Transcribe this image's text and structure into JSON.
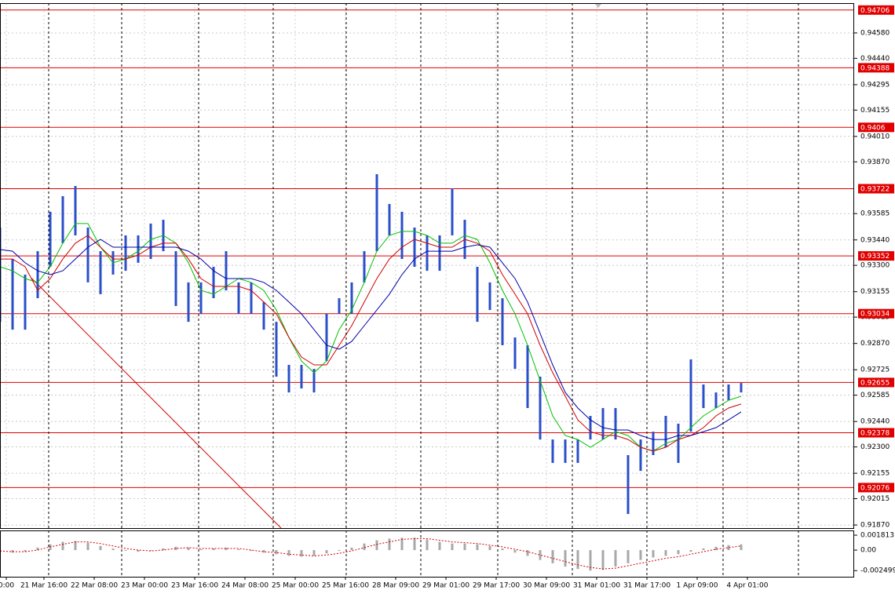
{
  "chart_data": [
    {
      "type": "range",
      "color": "#2a4fc9",
      "x": [
        -4,
        0,
        4,
        8,
        12,
        16,
        20,
        24,
        28,
        32,
        36,
        40,
        44,
        48,
        52,
        56,
        60,
        64,
        68,
        72,
        76,
        80,
        84,
        88,
        92,
        96,
        100,
        104,
        108,
        112,
        116,
        120,
        124,
        128,
        132,
        136,
        140,
        144,
        148,
        152,
        156,
        160,
        164,
        168,
        172,
        176,
        180,
        184,
        188,
        192,
        196,
        200,
        204,
        208,
        212,
        216,
        220,
        224,
        228,
        232
      ],
      "high": [
        0.93508,
        0.93335,
        0.93249,
        0.93378,
        0.93595,
        0.93681,
        0.93737,
        0.93508,
        0.93378,
        0.93378,
        0.93465,
        0.93465,
        0.9353,
        0.93551,
        0.93378,
        0.93206,
        0.93206,
        0.93292,
        0.93378,
        0.93206,
        0.93206,
        0.93098,
        0.92989,
        0.92752,
        0.92752,
        0.9273,
        0.93033,
        0.93119,
        0.93206,
        0.93378,
        0.93802,
        0.93638,
        0.93595,
        0.93508,
        0.93465,
        0.93465,
        0.93724,
        0.93551,
        0.93292,
        0.93206,
        0.93119,
        0.92903,
        0.9286,
        0.92687,
        0.92341,
        0.92341,
        0.92341,
        0.92471,
        0.92514,
        0.92514,
        0.92255,
        0.92341,
        0.92384,
        0.92471,
        0.92428,
        0.92782,
        0.92644,
        0.926,
        0.92644,
        0.92652
      ],
      "low": [
        0.92989,
        0.92946,
        0.92946,
        0.93119,
        0.93292,
        0.93422,
        0.93465,
        0.93206,
        0.93141,
        0.93249,
        0.9327,
        0.93314,
        0.93335,
        0.93378,
        0.93076,
        0.92989,
        0.93033,
        0.93119,
        0.93162,
        0.93033,
        0.93033,
        0.92946,
        0.92687,
        0.926,
        0.92622,
        0.926,
        0.92773,
        0.93033,
        0.93033,
        0.93206,
        0.93378,
        0.93465,
        0.93335,
        0.93292,
        0.9327,
        0.9327,
        0.93465,
        0.93335,
        0.92989,
        0.93054,
        0.9286,
        0.9273,
        0.92514,
        0.92341,
        0.92212,
        0.92212,
        0.92212,
        0.92341,
        0.92341,
        0.92341,
        0.91931,
        0.92168,
        0.92255,
        0.92298,
        0.92212,
        0.92384,
        0.92514,
        0.92514,
        0.92557,
        0.926
      ],
      "series": [
        {
          "color": "#00c000",
          "values": [
            0.93292,
            0.9327,
            0.93227,
            0.93206,
            0.93292,
            0.93422,
            0.9353,
            0.9353,
            0.934,
            0.93314,
            0.93335,
            0.93378,
            0.93443,
            0.93465,
            0.93422,
            0.93314,
            0.93162,
            0.93141,
            0.93184,
            0.93227,
            0.93206,
            0.93162,
            0.93054,
            0.92903,
            0.92773,
            0.92709,
            0.92773,
            0.92946,
            0.93054,
            0.93206,
            0.93378,
            0.93465,
            0.93487,
            0.93487,
            0.93465,
            0.93422,
            0.93422,
            0.93465,
            0.93443,
            0.93314,
            0.93162,
            0.93033,
            0.9286,
            0.92665,
            0.92471,
            0.92363,
            0.92341,
            0.92298,
            0.92341,
            0.92384,
            0.92363,
            0.92298,
            0.92277,
            0.9232,
            0.92341,
            0.92406,
            0.92471,
            0.92514,
            0.92557,
            0.92579
          ]
        },
        {
          "color": "#d00000",
          "values": [
            0.93335,
            0.93335,
            0.93292,
            0.93162,
            0.93227,
            0.93335,
            0.93422,
            0.93465,
            0.934,
            0.93335,
            0.93335,
            0.93357,
            0.934,
            0.93422,
            0.93422,
            0.93335,
            0.93227,
            0.93184,
            0.93184,
            0.93184,
            0.93162,
            0.93098,
            0.93033,
            0.92903,
            0.92795,
            0.92752,
            0.92752,
            0.9286,
            0.92968,
            0.93098,
            0.93227,
            0.93335,
            0.934,
            0.93443,
            0.93422,
            0.934,
            0.934,
            0.93443,
            0.93422,
            0.93378,
            0.93249,
            0.93141,
            0.93033,
            0.9286,
            0.92709,
            0.92579,
            0.92449,
            0.92384,
            0.92363,
            0.92363,
            0.92341,
            0.92298,
            0.92277,
            0.92298,
            0.92341,
            0.92363,
            0.92406,
            0.92471,
            0.92514,
            0.92536
          ]
        },
        {
          "color": "#0000a8",
          "values": [
            0.93387,
            0.93378,
            0.93314,
            0.9327,
            0.93249,
            0.9327,
            0.93335,
            0.934,
            0.93443,
            0.934,
            0.934,
            0.934,
            0.934,
            0.934,
            0.934,
            0.93378,
            0.93335,
            0.9327,
            0.93227,
            0.93227,
            0.93227,
            0.93206,
            0.93162,
            0.93098,
            0.93033,
            0.92946,
            0.9286,
            0.92838,
            0.92881,
            0.92968,
            0.93054,
            0.93141,
            0.93249,
            0.93335,
            0.93378,
            0.93378,
            0.93378,
            0.934,
            0.93413,
            0.934,
            0.93314,
            0.93227,
            0.93098,
            0.92925,
            0.92752,
            0.926,
            0.92514,
            0.92449,
            0.92406,
            0.92393,
            0.92393,
            0.92363,
            0.92341,
            0.92341,
            0.92363,
            0.92363,
            0.92384,
            0.92406,
            0.92449,
            0.92493
          ]
        }
      ],
      "trendline": {
        "color": "#d00000",
        "x": [
          6,
          85.5
        ],
        "y": [
          0.9323,
          0.91853
        ]
      },
      "levels": [
        0.94706,
        0.94388,
        0.9406,
        0.93722,
        0.93352,
        0.93034,
        0.92655,
        0.92378,
        0.92076
      ],
      "level_color": "#e00000",
      "xlim": [
        -4,
        268
      ],
      "xticks": [
        {
          "value": -2,
          "label": "0:00"
        },
        {
          "value": 10,
          "label": "21 Mar 16:00"
        },
        {
          "value": 26,
          "label": "22 Mar 08:00"
        },
        {
          "value": 42,
          "label": "23 Mar 00:00"
        },
        {
          "value": 58,
          "label": "23 Mar 16:00"
        },
        {
          "value": 74,
          "label": "24 Mar 08:00"
        },
        {
          "value": 90,
          "label": "25 Mar 00:00"
        },
        {
          "value": 106,
          "label": "25 Mar 16:00"
        },
        {
          "value": 122,
          "label": "28 Mar 09:00"
        },
        {
          "value": 138,
          "label": "29 Mar 01:00"
        },
        {
          "value": 154,
          "label": "29 Mar 17:00"
        },
        {
          "value": 170,
          "label": "30 Mar 09:00"
        },
        {
          "value": 186,
          "label": "31 Mar 01:00"
        },
        {
          "value": 202,
          "label": "31 Mar 17:00"
        },
        {
          "value": 218,
          "label": "1 Apr 09:00"
        },
        {
          "value": 234,
          "label": "4 Apr 01:00"
        }
      ],
      "ylim": [
        0.91853,
        0.94744
      ],
      "yticks": [
        {
          "value": 0.9458,
          "label": "0.94580"
        },
        {
          "value": 0.9444,
          "label": "0.94440"
        },
        0.94295,
        0.94155,
        {
          "value": 0.9401,
          "label": "0.94010"
        },
        {
          "value": 0.9387,
          "label": "0.93870"
        },
        0.93585,
        {
          "value": 0.9344,
          "label": "0.93440"
        },
        {
          "value": 0.933,
          "label": "0.93300"
        },
        0.93155,
        0.93015,
        {
          "value": 0.9287,
          "label": "0.92870"
        },
        0.92725,
        0.92585,
        {
          "value": 0.9244,
          "label": "0.92440"
        },
        {
          "value": 0.923,
          "label": "0.92300"
        },
        0.92155,
        0.92015,
        {
          "value": 0.9187,
          "label": "0.91870"
        }
      ],
      "grid": true
    },
    {
      "type": "bar",
      "color": "#a8a8a8",
      "x": [
        -4,
        0,
        4,
        8,
        12,
        16,
        20,
        24,
        28,
        32,
        36,
        40,
        44,
        48,
        52,
        56,
        60,
        64,
        68,
        72,
        76,
        80,
        84,
        88,
        92,
        96,
        100,
        104,
        108,
        112,
        116,
        120,
        124,
        128,
        132,
        136,
        140,
        144,
        148,
        152,
        156,
        160,
        164,
        168,
        172,
        176,
        180,
        184,
        188,
        192,
        196,
        200,
        204,
        208,
        212,
        216,
        220,
        224,
        228,
        232
      ],
      "values": [
        -0.0002,
        -0.0003,
        -0.0002,
        0.0003,
        0.0007,
        0.001,
        0.0011,
        0.0009,
        0.0005,
        0.0002,
        -0.0001,
        -0.0002,
        -0.0001,
        0.0002,
        0.0004,
        0.0003,
        0.0001,
        0.0002,
        0.0003,
        0.0001,
        -0.0001,
        -0.0003,
        -0.0005,
        -0.0007,
        -0.0008,
        -0.0007,
        -0.0004,
        -0.0001,
        0.0003,
        0.0008,
        0.0012,
        0.0014,
        0.0015,
        0.0015,
        0.0013,
        0.001,
        0.0008,
        0.0008,
        0.0007,
        0.0005,
        0.0002,
        -0.0003,
        -0.0007,
        -0.0012,
        -0.0016,
        -0.002,
        -0.0023,
        -0.0025,
        -0.0024,
        -0.002,
        -0.0016,
        -0.0012,
        -0.0009,
        -0.0007,
        -0.0005,
        -0.0002,
        0.0002,
        0.0004,
        0.0006,
        0.0007
      ],
      "signal": {
        "color": "#d00000",
        "values": [
          -0.0001,
          -0.0002,
          -0.0002,
          0,
          0.0004,
          0.0007,
          0.001,
          0.001,
          0.0008,
          0.0005,
          0.0002,
          0,
          -0.0001,
          0,
          0.0002,
          0.0003,
          0.0002,
          0.0002,
          0.0002,
          0.0002,
          0,
          -0.0002,
          -0.0003,
          -0.0005,
          -0.0006,
          -0.0007,
          -0.0006,
          -0.0004,
          -0.0001,
          0.0003,
          0.0007,
          0.001,
          0.0013,
          0.0014,
          0.0014,
          0.0012,
          0.001,
          0.0009,
          0.0008,
          0.0006,
          0.0004,
          0.0001,
          -0.0002,
          -0.0006,
          -0.001,
          -0.0014,
          -0.0018,
          -0.0021,
          -0.0023,
          -0.0022,
          -0.0019,
          -0.0016,
          -0.0013,
          -0.001,
          -0.0008,
          -0.0005,
          -0.0002,
          0.0001,
          0.0003,
          0.0005
        ]
      },
      "xlim": [
        -4,
        268
      ],
      "ylim": [
        -0.00324,
        0.00239
      ],
      "yticks": [
        0.001813,
        {
          "value": 0,
          "label": "0.00"
        },
        -0.002499
      ]
    }
  ]
}
